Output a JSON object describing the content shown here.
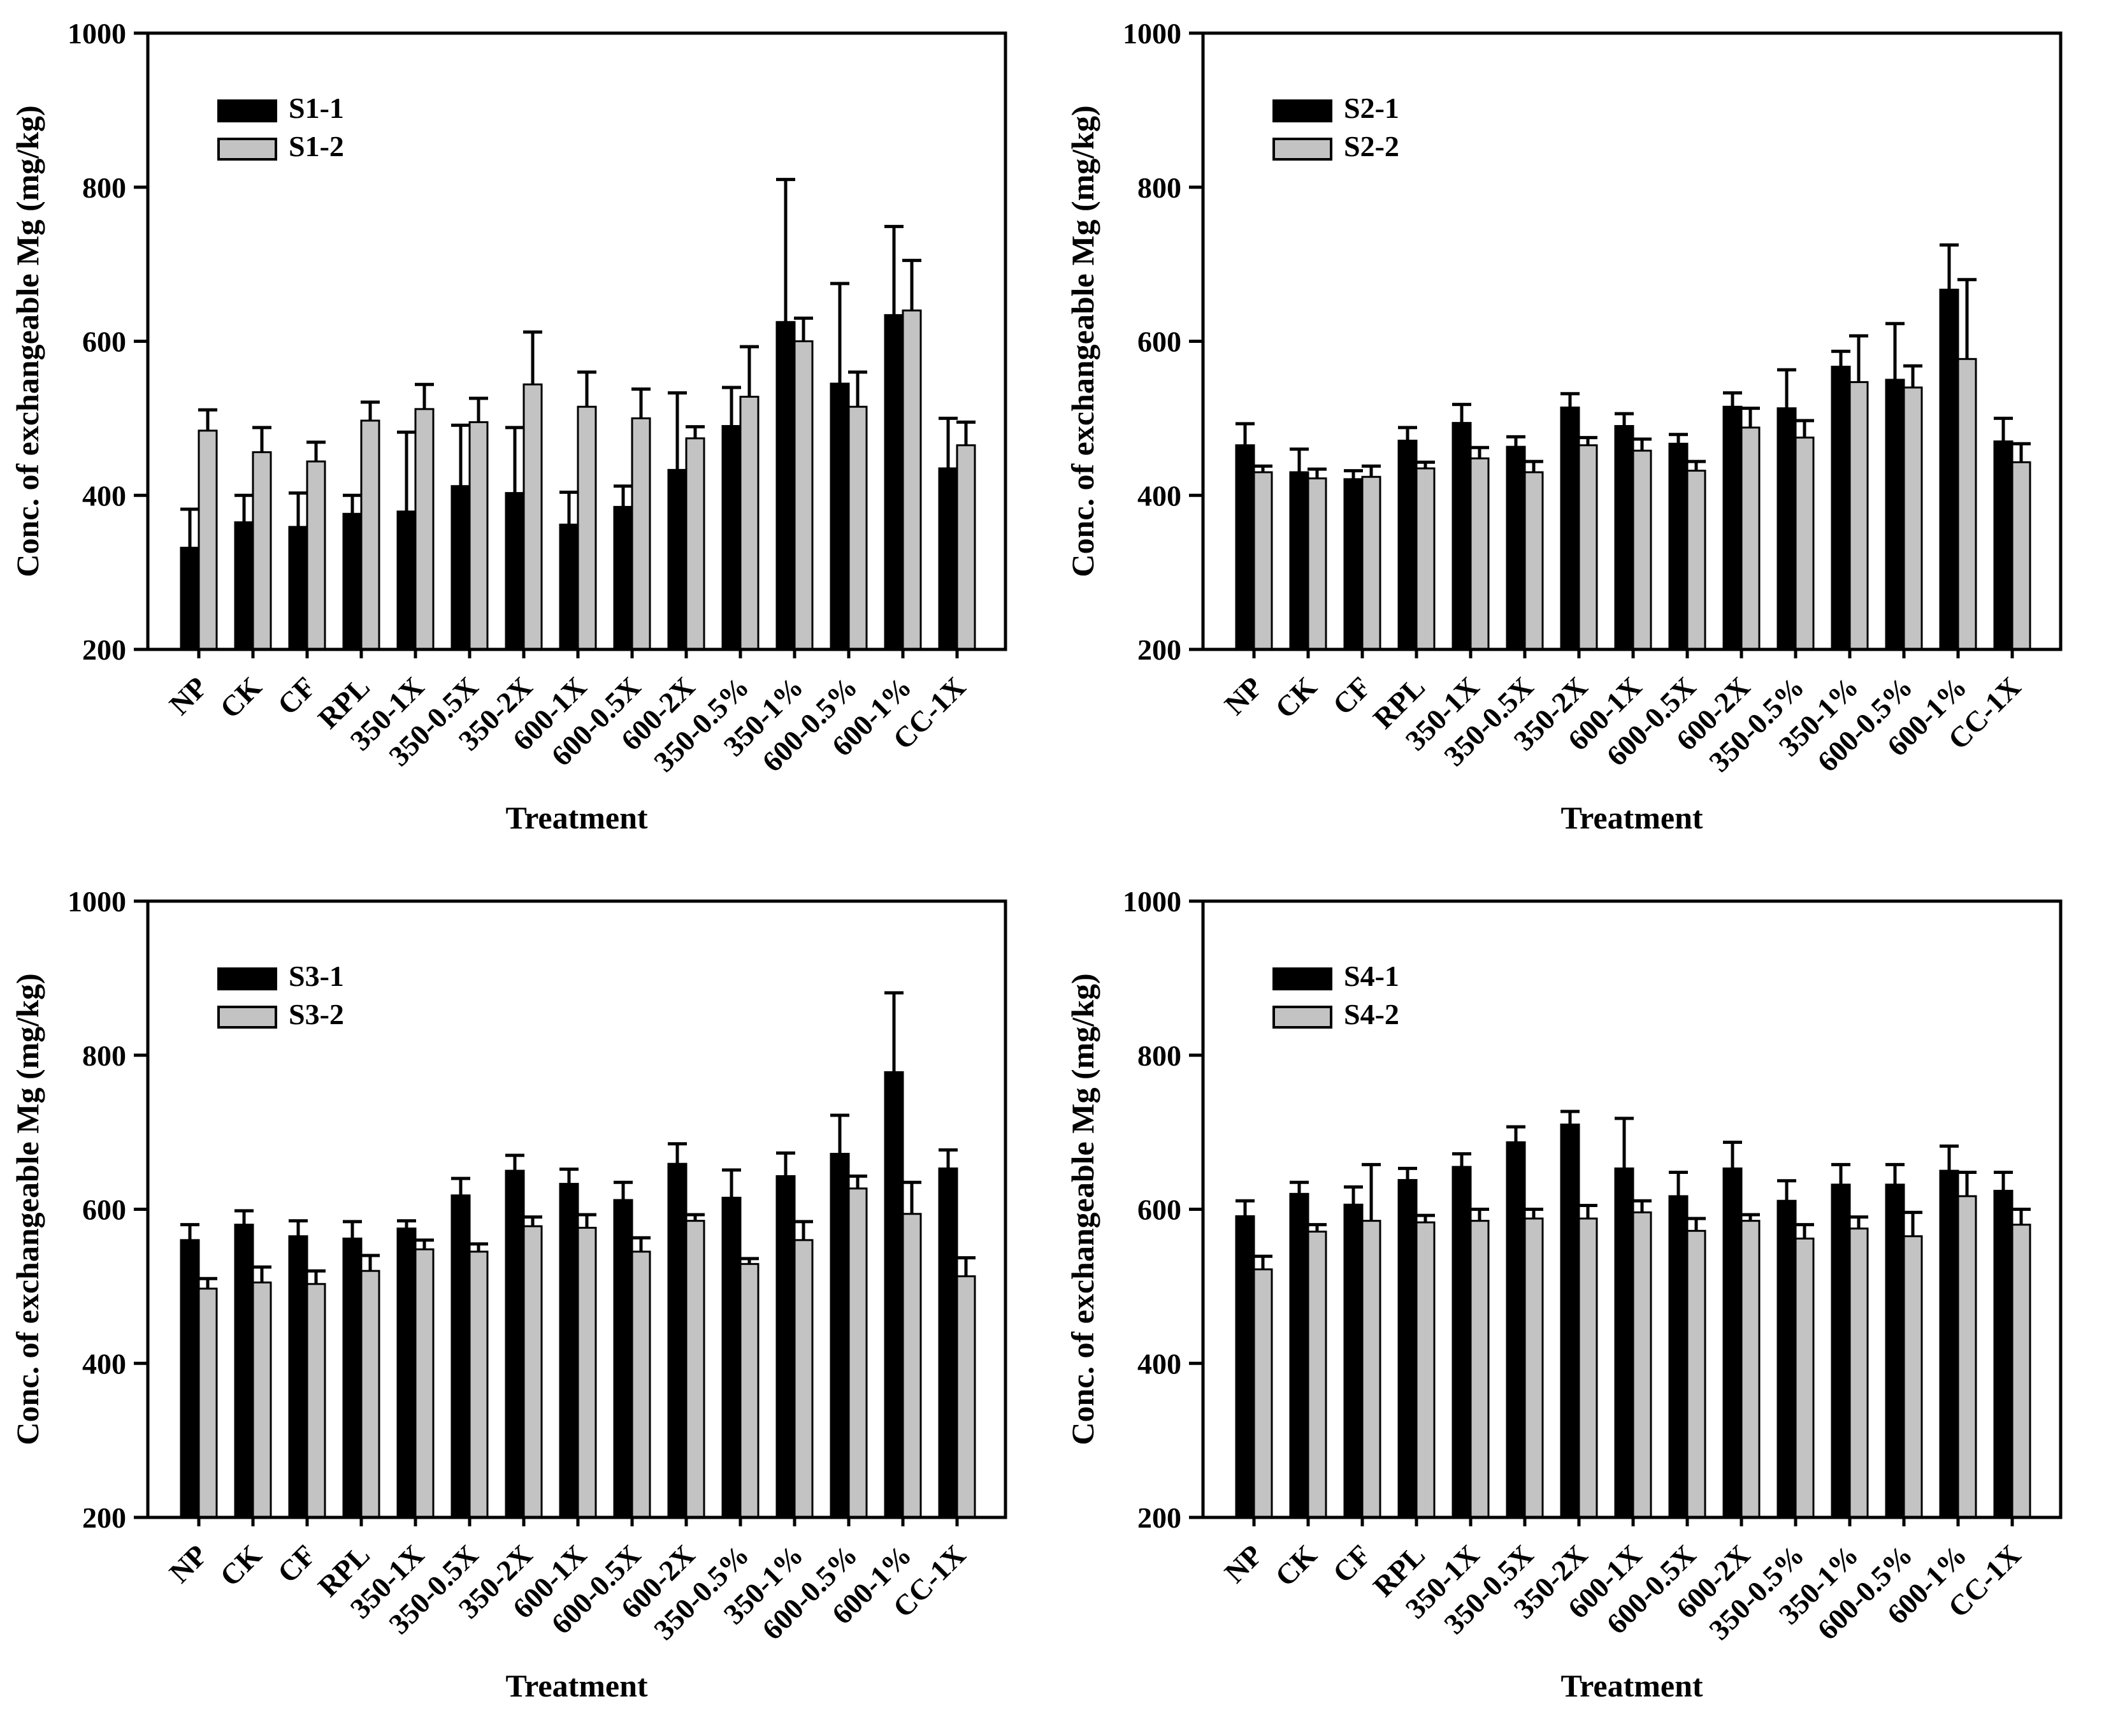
{
  "figure": {
    "background": "#ffffff",
    "axis_color": "#000000",
    "bar_primary_color": "#000000",
    "bar_secondary_color": "#c3c3c3",
    "bar_outline_color": "#000000"
  },
  "chart_data": [
    {
      "type": "bar",
      "panel": "top-left",
      "title": "",
      "xlabel": "Treatment",
      "ylabel": "Conc. of exchangeable Mg (mg/kg)",
      "ylim": [
        200,
        1000
      ],
      "yticks": [
        200,
        400,
        600,
        800,
        1000
      ],
      "legend_position": "upper-left-inside",
      "grid": false,
      "categories": [
        "NP",
        "CK",
        "CF",
        "RPL",
        "350-1X",
        "350-0.5X",
        "350-2X",
        "600-1X",
        "600-0.5X",
        "600-2X",
        "350-0.5%",
        "350-1%",
        "600-0.5%",
        "600-1%",
        "CC-1X"
      ],
      "series": [
        {
          "name": "S1-1",
          "color": "#000000",
          "values": [
            332,
            365,
            359,
            376,
            379,
            412,
            403,
            362,
            385,
            433,
            490,
            625,
            545,
            634,
            435
          ],
          "errors": [
            50,
            35,
            44,
            24,
            103,
            79,
            85,
            42,
            27,
            100,
            50,
            185,
            130,
            115,
            65
          ]
        },
        {
          "name": "S1-2",
          "color": "#c3c3c3",
          "values": [
            484,
            456,
            444,
            497,
            512,
            495,
            544,
            515,
            500,
            474,
            528,
            600,
            515,
            640,
            465
          ],
          "errors": [
            27,
            32,
            25,
            24,
            32,
            31,
            68,
            45,
            38,
            15,
            65,
            30,
            45,
            65,
            30
          ]
        }
      ]
    },
    {
      "type": "bar",
      "panel": "top-right",
      "title": "",
      "xlabel": "Treatment",
      "ylabel": "Conc. of exchangeable Mg (mg/kg)",
      "ylim": [
        200,
        1000
      ],
      "yticks": [
        200,
        400,
        600,
        800,
        1000
      ],
      "legend_position": "upper-left-inside",
      "grid": false,
      "categories": [
        "NP",
        "CK",
        "CF",
        "RPL",
        "350-1X",
        "350-0.5X",
        "350-2X",
        "600-1X",
        "600-0.5X",
        "600-2X",
        "350-0.5%",
        "350-1%",
        "600-0.5%",
        "600-1%",
        "CC-1X"
      ],
      "series": [
        {
          "name": "S2-1",
          "color": "#000000",
          "values": [
            465,
            430,
            421,
            471,
            494,
            463,
            514,
            490,
            467,
            515,
            513,
            567,
            550,
            667,
            470
          ],
          "errors": [
            28,
            30,
            11,
            17,
            24,
            13,
            18,
            16,
            12,
            18,
            50,
            20,
            73,
            58,
            30
          ]
        },
        {
          "name": "S2-2",
          "color": "#c3c3c3",
          "values": [
            430,
            422,
            424,
            435,
            448,
            430,
            465,
            458,
            432,
            488,
            475,
            547,
            540,
            577,
            443
          ],
          "errors": [
            8,
            12,
            14,
            8,
            14,
            14,
            10,
            15,
            12,
            25,
            22,
            60,
            28,
            103,
            24
          ]
        }
      ]
    },
    {
      "type": "bar",
      "panel": "bottom-left",
      "title": "",
      "xlabel": "Treatment",
      "ylabel": "Conc. of exchangeable Mg (mg/kg)",
      "ylim": [
        200,
        1000
      ],
      "yticks": [
        200,
        400,
        600,
        800,
        1000
      ],
      "legend_position": "upper-left-inside",
      "grid": false,
      "categories": [
        "NP",
        "CK",
        "CF",
        "RPL",
        "350-1X",
        "350-0.5X",
        "350-2X",
        "600-1X",
        "600-0.5X",
        "600-2X",
        "350-0.5%",
        "350-1%",
        "600-0.5%",
        "600-1%",
        "CC-1X"
      ],
      "series": [
        {
          "name": "S3-1",
          "color": "#000000",
          "values": [
            560,
            580,
            565,
            562,
            575,
            618,
            650,
            633,
            612,
            659,
            615,
            643,
            672,
            778,
            653
          ],
          "errors": [
            20,
            18,
            20,
            22,
            10,
            22,
            20,
            19,
            23,
            26,
            36,
            30,
            50,
            103,
            24
          ]
        },
        {
          "name": "S3-2",
          "color": "#c3c3c3",
          "values": [
            497,
            505,
            503,
            520,
            548,
            545,
            578,
            576,
            545,
            585,
            529,
            560,
            627,
            594,
            513
          ],
          "errors": [
            13,
            20,
            17,
            20,
            12,
            10,
            12,
            17,
            18,
            8,
            7,
            24,
            16,
            41,
            24
          ]
        }
      ]
    },
    {
      "type": "bar",
      "panel": "bottom-right",
      "title": "",
      "xlabel": "Treatment",
      "ylabel": "Conc. of exchangeable Mg (mg/kg)",
      "ylim": [
        200,
        1000
      ],
      "yticks": [
        200,
        400,
        600,
        800,
        1000
      ],
      "legend_position": "upper-left-inside",
      "grid": false,
      "categories": [
        "NP",
        "CK",
        "CF",
        "RPL",
        "350-1X",
        "350-0.5X",
        "350-2X",
        "600-1X",
        "600-0.5X",
        "600-2X",
        "350-0.5%",
        "350-1%",
        "600-0.5%",
        "600-1%",
        "CC-1X"
      ],
      "series": [
        {
          "name": "S4-1",
          "color": "#000000",
          "values": [
            591,
            620,
            606,
            638,
            655,
            687,
            710,
            653,
            617,
            653,
            611,
            632,
            632,
            650,
            624
          ],
          "errors": [
            20,
            15,
            23,
            15,
            17,
            20,
            17,
            65,
            31,
            34,
            26,
            26,
            26,
            32,
            24
          ]
        },
        {
          "name": "S4-2",
          "color": "#c3c3c3",
          "values": [
            522,
            571,
            585,
            583,
            585,
            588,
            588,
            596,
            572,
            585,
            562,
            575,
            565,
            617,
            580
          ],
          "errors": [
            17,
            9,
            73,
            9,
            15,
            12,
            17,
            15,
            16,
            8,
            18,
            15,
            31,
            31,
            20
          ]
        }
      ]
    }
  ]
}
